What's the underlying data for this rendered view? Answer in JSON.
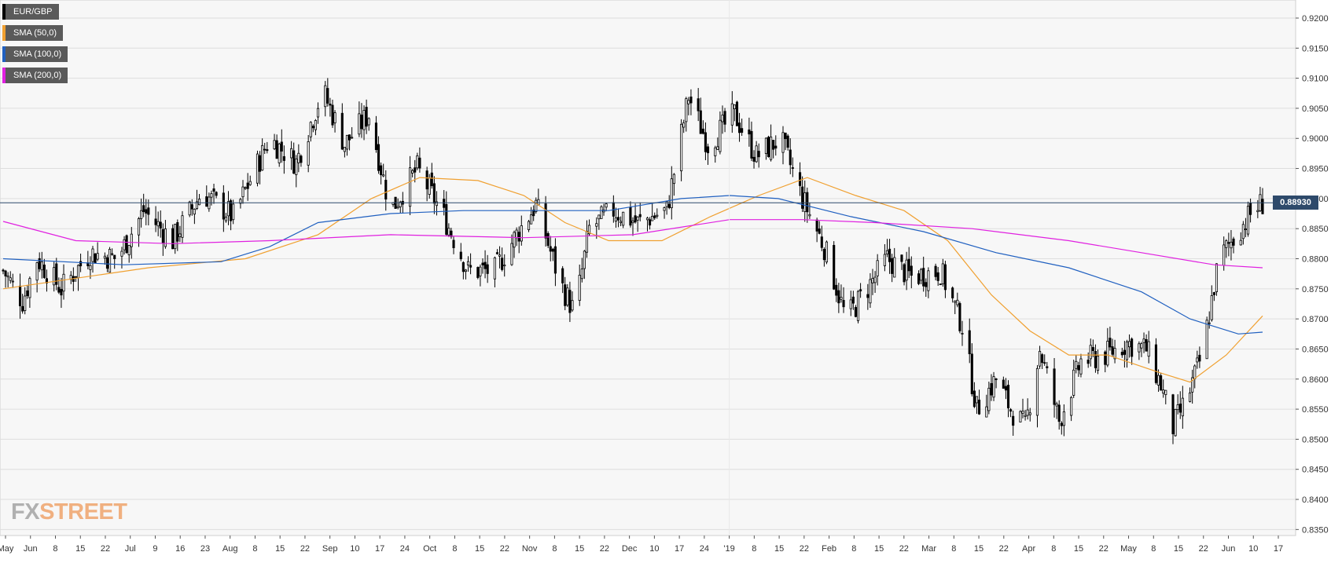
{
  "chart_data": {
    "type": "candlestick",
    "symbol": "EUR/GBP",
    "legend": [
      {
        "label": "EUR/GBP",
        "color": "#000000"
      },
      {
        "label": "SMA (50,0)",
        "color": "#f0a030"
      },
      {
        "label": "SMA (100,0)",
        "color": "#2060c0"
      },
      {
        "label": "SMA (200,0)",
        "color": "#e020e0"
      }
    ],
    "last_price": "0.88930",
    "y_ticks": [
      "0.9200",
      "0.9150",
      "0.9100",
      "0.9050",
      "0.9000",
      "0.8950",
      "0.8900",
      "0.8850",
      "0.8800",
      "0.8750",
      "0.8700",
      "0.8650",
      "0.8600",
      "0.8550",
      "0.8500",
      "0.8450",
      "0.8400",
      "0.8350"
    ],
    "ylim": [
      0.834,
      0.923
    ],
    "x_ticks": [
      "May",
      "Jun",
      "8",
      "15",
      "22",
      "Jul",
      "9",
      "16",
      "23",
      "Aug",
      "8",
      "15",
      "22",
      "Sep",
      "10",
      "17",
      "24",
      "Oct",
      "8",
      "15",
      "22",
      "Nov",
      "8",
      "15",
      "22",
      "Dec",
      "10",
      "17",
      "24",
      "'19",
      "8",
      "15",
      "22",
      "Feb",
      "8",
      "15",
      "22",
      "Mar",
      "8",
      "15",
      "22",
      "Apr",
      "8",
      "15",
      "22",
      "May",
      "8",
      "15",
      "22",
      "Jun",
      "10",
      "17"
    ],
    "close_anchors": [
      [
        0,
        0.878
      ],
      [
        8,
        0.873
      ],
      [
        14,
        0.88
      ],
      [
        24,
        0.875
      ],
      [
        36,
        0.881
      ],
      [
        47,
        0.88
      ],
      [
        58,
        0.888
      ],
      [
        70,
        0.883
      ],
      [
        82,
        0.891
      ],
      [
        95,
        0.887
      ],
      [
        110,
        0.9
      ],
      [
        121,
        0.896
      ],
      [
        132,
        0.908
      ],
      [
        141,
        0.899
      ],
      [
        151,
        0.904
      ],
      [
        160,
        0.888
      ],
      [
        171,
        0.895
      ],
      [
        182,
        0.887
      ],
      [
        192,
        0.878
      ],
      [
        203,
        0.878
      ],
      [
        212,
        0.884
      ],
      [
        220,
        0.889
      ],
      [
        230,
        0.876
      ],
      [
        236,
        0.871
      ],
      [
        242,
        0.885
      ],
      [
        252,
        0.888
      ],
      [
        262,
        0.886
      ],
      [
        274,
        0.888
      ],
      [
        283,
        0.907
      ],
      [
        291,
        0.899
      ],
      [
        302,
        0.904
      ],
      [
        311,
        0.897
      ],
      [
        321,
        0.9
      ],
      [
        330,
        0.89
      ],
      [
        339,
        0.882
      ],
      [
        348,
        0.87
      ],
      [
        355,
        0.874
      ],
      [
        365,
        0.88
      ],
      [
        375,
        0.877
      ],
      [
        387,
        0.878
      ],
      [
        396,
        0.869
      ],
      [
        402,
        0.855
      ],
      [
        410,
        0.86
      ],
      [
        416,
        0.855
      ],
      [
        422,
        0.852
      ],
      [
        428,
        0.865
      ],
      [
        436,
        0.853
      ],
      [
        445,
        0.863
      ],
      [
        455,
        0.864
      ],
      [
        464,
        0.866
      ],
      [
        472,
        0.865
      ],
      [
        478,
        0.859
      ],
      [
        483,
        0.852
      ],
      [
        489,
        0.857
      ],
      [
        495,
        0.864
      ],
      [
        502,
        0.88
      ],
      [
        509,
        0.884
      ],
      [
        516,
        0.888
      ],
      [
        520,
        0.8893
      ]
    ],
    "sma": [
      {
        "name": "SMA (50,0)",
        "color": "#f0a030",
        "points": [
          [
            0,
            0.875
          ],
          [
            60,
            0.8785
          ],
          [
            100,
            0.88
          ],
          [
            130,
            0.884
          ],
          [
            152,
            0.89
          ],
          [
            172,
            0.8935
          ],
          [
            196,
            0.893
          ],
          [
            215,
            0.8905
          ],
          [
            232,
            0.886
          ],
          [
            250,
            0.883
          ],
          [
            272,
            0.883
          ],
          [
            292,
            0.887
          ],
          [
            312,
            0.8905
          ],
          [
            332,
            0.8935
          ],
          [
            352,
            0.8905
          ],
          [
            372,
            0.888
          ],
          [
            390,
            0.883
          ],
          [
            408,
            0.874
          ],
          [
            424,
            0.868
          ],
          [
            440,
            0.864
          ],
          [
            456,
            0.864
          ],
          [
            478,
            0.861
          ],
          [
            490,
            0.8595
          ],
          [
            505,
            0.864
          ],
          [
            520,
            0.8705
          ]
        ]
      },
      {
        "name": "SMA (100,0)",
        "color": "#2060c0",
        "points": [
          [
            0,
            0.88
          ],
          [
            50,
            0.879
          ],
          [
            90,
            0.8795
          ],
          [
            110,
            0.882
          ],
          [
            130,
            0.886
          ],
          [
            160,
            0.8875
          ],
          [
            190,
            0.888
          ],
          [
            215,
            0.888
          ],
          [
            250,
            0.888
          ],
          [
            280,
            0.89
          ],
          [
            300,
            0.8905
          ],
          [
            320,
            0.89
          ],
          [
            350,
            0.887
          ],
          [
            380,
            0.8845
          ],
          [
            410,
            0.881
          ],
          [
            440,
            0.8785
          ],
          [
            470,
            0.8745
          ],
          [
            490,
            0.87
          ],
          [
            510,
            0.8675
          ],
          [
            520,
            0.8678
          ]
        ]
      },
      {
        "name": "SMA (200,0)",
        "color": "#e020e0",
        "points": [
          [
            0,
            0.8862
          ],
          [
            30,
            0.883
          ],
          [
            70,
            0.8825
          ],
          [
            110,
            0.883
          ],
          [
            160,
            0.884
          ],
          [
            215,
            0.8835
          ],
          [
            260,
            0.884
          ],
          [
            300,
            0.8865
          ],
          [
            330,
            0.8865
          ],
          [
            360,
            0.886
          ],
          [
            400,
            0.885
          ],
          [
            440,
            0.883
          ],
          [
            470,
            0.881
          ],
          [
            500,
            0.879
          ],
          [
            520,
            0.8785
          ]
        ]
      }
    ]
  },
  "logo": {
    "fx": "FX",
    "street": "STREET"
  }
}
